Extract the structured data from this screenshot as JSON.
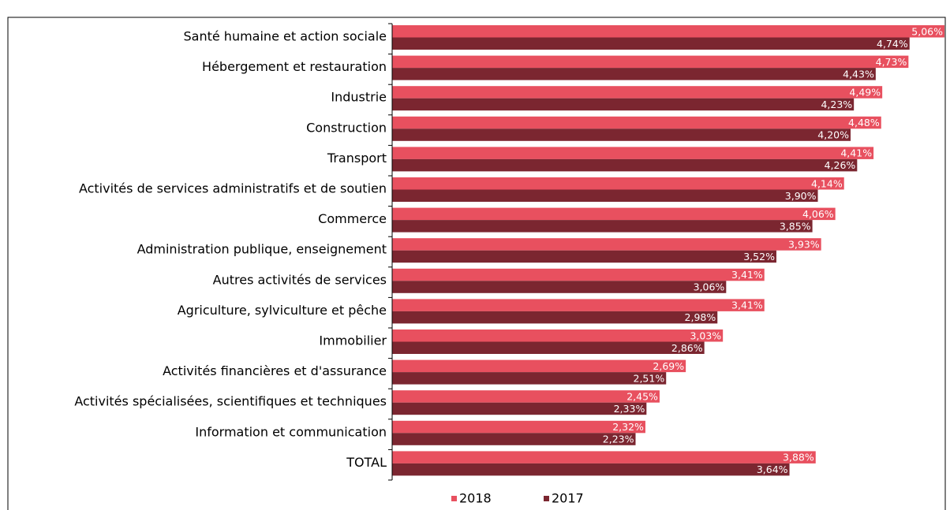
{
  "chart_data": {
    "type": "bar",
    "orientation": "horizontal",
    "categories": [
      "Santé humaine et action sociale",
      "Hébergement et restauration",
      "Industrie",
      "Construction",
      "Transport",
      "Activités de services administratifs et de soutien",
      "Commerce",
      "Administration publique, enseignement",
      "Autres activités de services",
      "Agriculture, sylviculture et pêche",
      "Immobilier",
      "Activités financières et d'assurance",
      "Activités spécialisées, scientifiques et techniques",
      "Information et communication",
      "TOTAL"
    ],
    "series": [
      {
        "name": "2018",
        "color": "#e8505f",
        "values": [
          5.06,
          4.73,
          4.49,
          4.48,
          4.41,
          4.14,
          4.06,
          3.93,
          3.41,
          3.41,
          3.03,
          2.69,
          2.45,
          2.32,
          3.88
        ],
        "value_labels": [
          "5,06%",
          "4,73%",
          "4,49%",
          "4,48%",
          "4,41%",
          "4,14%",
          "4,06%",
          "3,93%",
          "3,41%",
          "3,41%",
          "3,03%",
          "2,69%",
          "2,45%",
          "2,32%",
          "3,88%"
        ]
      },
      {
        "name": "2017",
        "color": "#7b2630",
        "values": [
          4.74,
          4.43,
          4.23,
          4.2,
          4.26,
          3.9,
          3.85,
          3.52,
          3.06,
          2.98,
          2.86,
          2.51,
          2.33,
          2.23,
          3.64
        ],
        "value_labels": [
          "4,74%",
          "4,43%",
          "4,23%",
          "4,20%",
          "4,26%",
          "3,90%",
          "3,85%",
          "3,52%",
          "3,06%",
          "2,98%",
          "2,86%",
          "2,51%",
          "2,33%",
          "2,23%",
          "3,64%"
        ]
      }
    ],
    "xlim": [
      0,
      5.06
    ],
    "legend": "bottom"
  }
}
